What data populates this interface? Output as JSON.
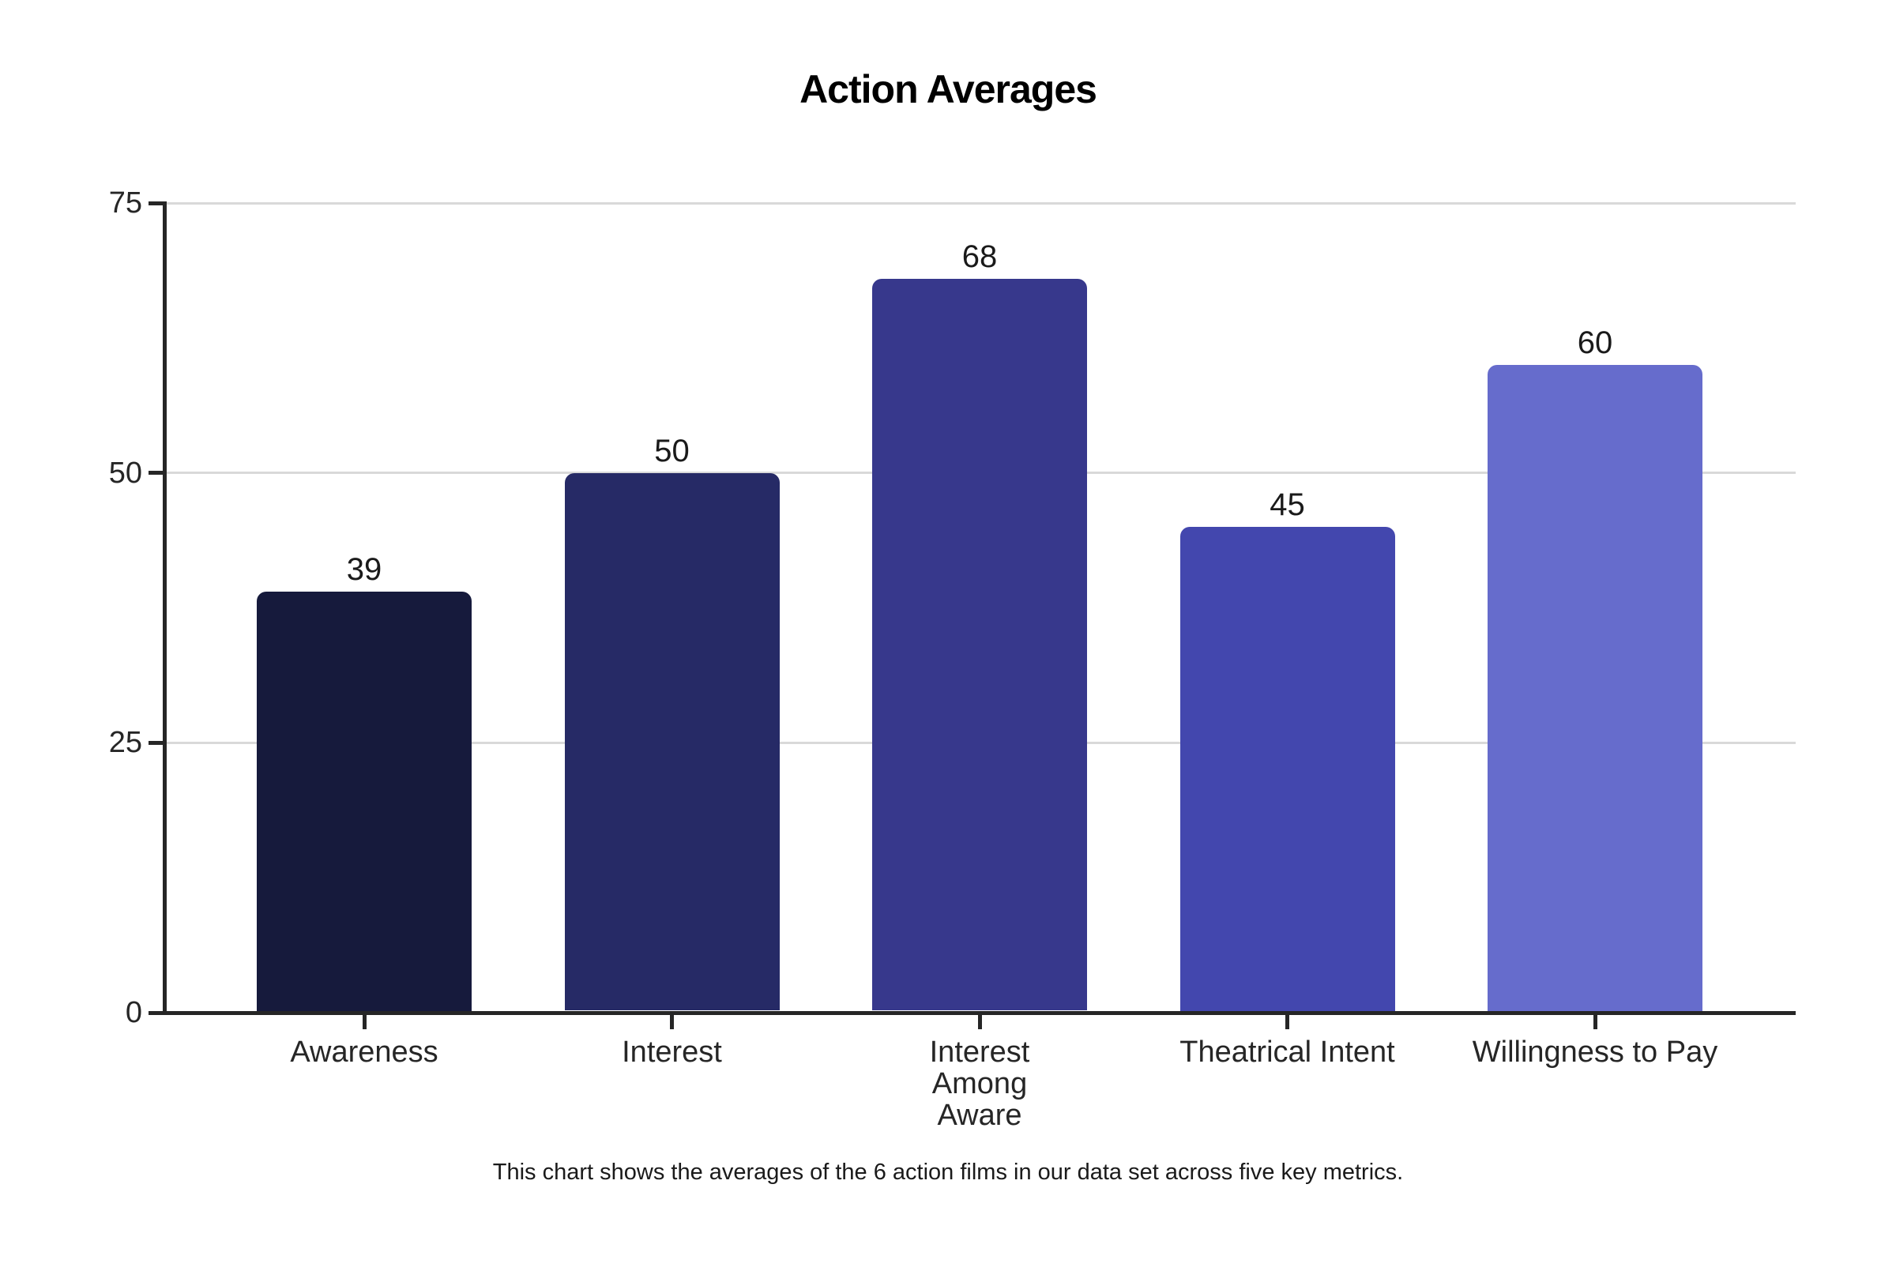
{
  "chart_data": {
    "type": "bar",
    "title": "Action Averages",
    "caption": "This chart shows the averages of the 6 action films in our data set across five key metrics.",
    "categories": [
      "Awareness",
      "Interest",
      "Interest Among Aware",
      "Theatrical Intent",
      "Willingness to Pay"
    ],
    "category_label_lines": [
      [
        "Awareness"
      ],
      [
        "Interest"
      ],
      [
        "Interest",
        "Among",
        "Aware"
      ],
      [
        "Theatrical Intent"
      ],
      [
        "Willingness to Pay"
      ]
    ],
    "values": [
      39,
      50,
      68,
      45,
      60
    ],
    "value_labels": [
      "39",
      "50",
      "68",
      "45",
      "60"
    ],
    "bar_colors": [
      "#161a3c",
      "#262a66",
      "#37388c",
      "#4347ae",
      "#666ccc"
    ],
    "y_ticks": [
      0,
      25,
      50,
      75
    ],
    "y_tick_labels": [
      "0",
      "25",
      "50",
      "75"
    ],
    "ylim": [
      0,
      75
    ],
    "xlabel": "",
    "ylabel": "",
    "grid": "horizontal",
    "legend": "none",
    "gridline_color": "#d9d9d9",
    "axis_color": "#262626",
    "tick_label_color": "#262626",
    "value_label_color": "#1a1a1a",
    "background_color": "#ffffff"
  }
}
